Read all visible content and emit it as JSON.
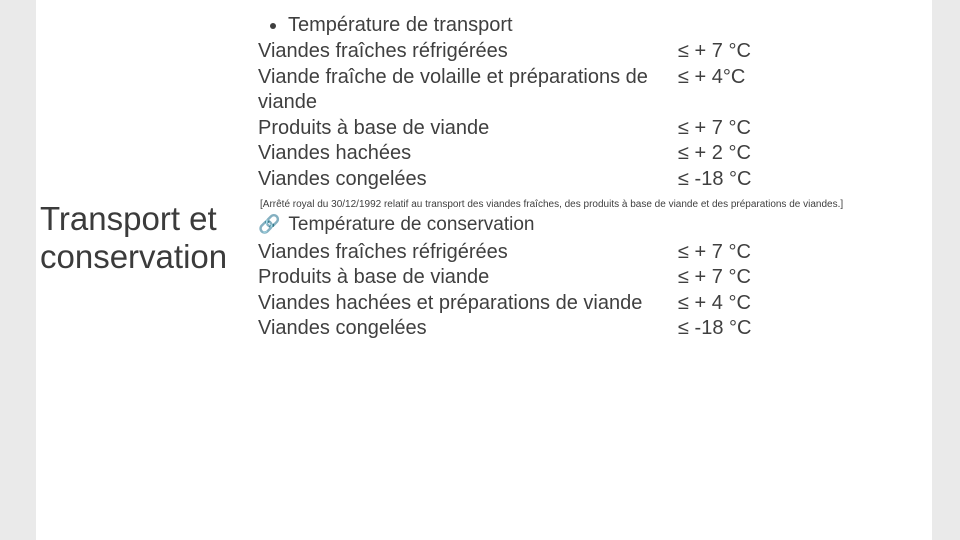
{
  "slide": {
    "title": "Transport et conservation",
    "title_fontsize": 33,
    "title_color": "#3b3b3b",
    "accent_color": "#eaeaea",
    "text_color": "#3f3f3f",
    "body_fontsize": 20,
    "background_color": "#ffffff"
  },
  "section1": {
    "heading": "Température de transport",
    "bullet_symbol": "•",
    "rows": [
      {
        "label": "Viandes fraîches réfrigérées",
        "value": "≤ + 7 °C"
      },
      {
        "label": "Viande fraîche de volaille et préparations de viande",
        "value": "≤ + 4°C"
      },
      {
        "label": "Produits à base de viande",
        "value": "≤ + 7 °C"
      },
      {
        "label": "Viandes hachées",
        "value": "≤ + 2 °C"
      },
      {
        "label": "Viandes congelées",
        "value": "≤ -18 °C"
      }
    ]
  },
  "citation": "[Arrêté royal du 30/12/1992 relatif au transport des viandes fraîches, des produits à base de viande et des préparations de viandes.]",
  "section2": {
    "heading": "Température de conservation",
    "link_symbol": "🔗",
    "rows": [
      {
        "label": "Viandes fraîches réfrigérées",
        "value": "≤ + 7 °C"
      },
      {
        "label": "Produits à base de viande",
        "value": "≤ + 7 °C"
      },
      {
        "label": "Viandes hachées et préparations de viande",
        "value": "≤ + 4 °C"
      },
      {
        "label": "Viandes congelées",
        "value": "≤ -18 °C"
      }
    ]
  }
}
